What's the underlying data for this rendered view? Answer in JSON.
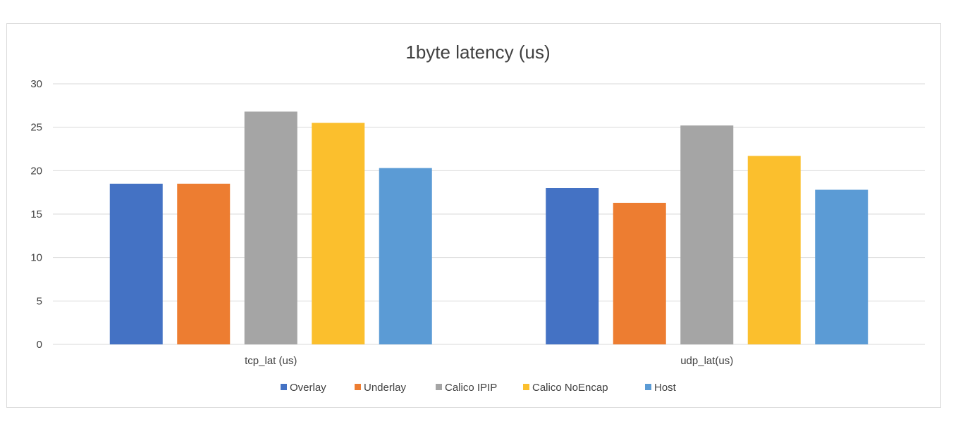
{
  "chart_data": {
    "type": "bar",
    "title": "1byte latency (us)",
    "xlabel": "",
    "ylabel": "",
    "categories": [
      "tcp_lat (us)",
      "udp_lat(us)"
    ],
    "ylim": [
      0,
      30
    ],
    "yticks": [
      0,
      5,
      10,
      15,
      20,
      25,
      30
    ],
    "grid": true,
    "legend_position": "bottom",
    "series": [
      {
        "name": "Overlay",
        "color": "#4472c4",
        "values": [
          18.5,
          18.0
        ]
      },
      {
        "name": "Underlay",
        "color": "#ed7d31",
        "values": [
          18.5,
          16.3
        ]
      },
      {
        "name": "Calico IPIP",
        "color": "#a5a5a5",
        "values": [
          26.8,
          25.2
        ]
      },
      {
        "name": "Calico NoEncap",
        "color": "#fbbf2d",
        "values": [
          25.5,
          21.7
        ]
      },
      {
        "name": "Host",
        "color": "#5b9bd5",
        "values": [
          20.3,
          17.8
        ]
      }
    ]
  }
}
